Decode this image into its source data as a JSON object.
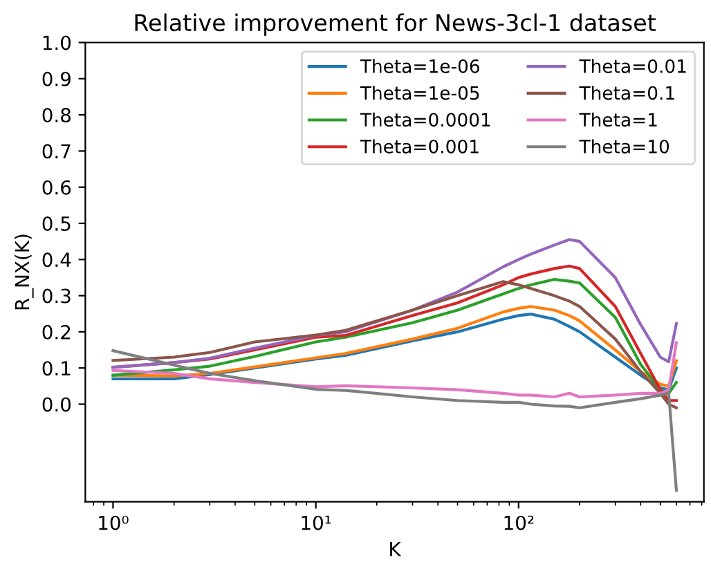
{
  "chart_data": {
    "type": "line",
    "title": "Relative improvement for News-3cl-1 dataset",
    "xlabel": "K",
    "ylabel": "R_NX(K)",
    "log": "x",
    "xlim": [
      0.73,
      820
    ],
    "xticks": [
      {
        "value": 1,
        "label": "10⁰"
      },
      {
        "value": 10,
        "label": "10¹"
      },
      {
        "value": 100,
        "label": "10²"
      }
    ],
    "ylim": [
      -0.27,
      1.0
    ],
    "yticks": [
      {
        "value": 0,
        "label": "0.0"
      },
      {
        "value": 0.1,
        "label": "0.1"
      },
      {
        "value": 0.2,
        "label": "0.2"
      },
      {
        "value": 0.3,
        "label": "0.3"
      },
      {
        "value": 0.4,
        "label": "0.4"
      },
      {
        "value": 0.5,
        "label": "0.5"
      },
      {
        "value": 0.6,
        "label": "0.6"
      },
      {
        "value": 0.7,
        "label": "0.7"
      },
      {
        "value": 0.8,
        "label": "0.8"
      },
      {
        "value": 0.9,
        "label": "0.9"
      },
      {
        "value": 1,
        "label": "1.0"
      }
    ],
    "grid": false,
    "legend": "top right",
    "marker": "none",
    "line_style": "solid",
    "x": [
      1,
      2,
      3,
      5,
      10,
      14,
      30,
      50,
      84,
      100,
      115,
      150,
      178,
      200,
      300,
      400,
      500,
      550,
      600
    ],
    "series": [
      {
        "name": "Theta=1e-06",
        "color": "#1f77b4",
        "values": [
          0.07,
          0.07,
          0.082,
          0.1,
          0.125,
          0.135,
          0.175,
          0.2,
          0.235,
          0.245,
          0.249,
          0.235,
          0.215,
          0.2,
          0.13,
          0.08,
          0.045,
          0.04,
          0.1
        ]
      },
      {
        "name": "Theta=1e-05",
        "color": "#ff7f0e",
        "values": [
          0.08,
          0.078,
          0.085,
          0.103,
          0.128,
          0.14,
          0.18,
          0.21,
          0.255,
          0.265,
          0.27,
          0.26,
          0.245,
          0.23,
          0.15,
          0.09,
          0.055,
          0.05,
          0.12
        ]
      },
      {
        "name": "Theta=0.0001",
        "color": "#2ca02c",
        "values": [
          0.08,
          0.095,
          0.105,
          0.132,
          0.172,
          0.185,
          0.225,
          0.26,
          0.305,
          0.32,
          0.33,
          0.345,
          0.34,
          0.335,
          0.24,
          0.11,
          0.04,
          0.03,
          0.06
        ]
      },
      {
        "name": "Theta=0.001",
        "color": "#d62728",
        "values": [
          0.102,
          0.115,
          0.125,
          0.15,
          0.185,
          0.19,
          0.245,
          0.28,
          0.33,
          0.35,
          0.36,
          0.375,
          0.382,
          0.375,
          0.27,
          0.14,
          0.04,
          0.01,
          0.01
        ]
      },
      {
        "name": "Theta=0.01",
        "color": "#9467bd",
        "values": [
          0.102,
          0.115,
          0.127,
          0.155,
          0.19,
          0.2,
          0.26,
          0.31,
          0.38,
          0.4,
          0.415,
          0.44,
          0.455,
          0.45,
          0.35,
          0.22,
          0.13,
          0.117,
          0.223
        ]
      },
      {
        "name": "Theta=0.1",
        "color": "#8c564b",
        "values": [
          0.121,
          0.13,
          0.143,
          0.172,
          0.191,
          0.204,
          0.26,
          0.3,
          0.339,
          0.33,
          0.32,
          0.3,
          0.285,
          0.27,
          0.18,
          0.09,
          0.03,
          0.0,
          -0.01
        ]
      },
      {
        "name": "Theta=1",
        "color": "#e377c2",
        "values": [
          0.093,
          0.085,
          0.07,
          0.06,
          0.048,
          0.051,
          0.045,
          0.04,
          0.03,
          0.025,
          0.025,
          0.02,
          0.03,
          0.02,
          0.025,
          0.03,
          0.03,
          0.04,
          0.17
        ]
      },
      {
        "name": "Theta=10",
        "color": "#7f7f7f",
        "values": [
          0.148,
          0.108,
          0.085,
          0.065,
          0.041,
          0.038,
          0.02,
          0.01,
          0.005,
          0.005,
          0.0,
          -0.005,
          -0.006,
          -0.01,
          0.005,
          0.015,
          0.025,
          0.03,
          -0.238
        ]
      }
    ]
  }
}
